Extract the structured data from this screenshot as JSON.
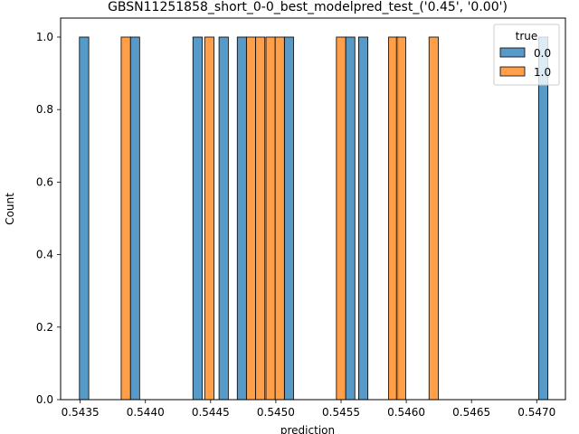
{
  "chart_data": {
    "type": "bar",
    "title": "GBSN11251858_short_0-0_best_modelpred_test_('0.45', '0.00')",
    "xlabel": "prediction",
    "ylabel": "Count",
    "xlim": [
      0.54335,
      0.54722
    ],
    "ylim": [
      0,
      1.0
    ],
    "xticks": [
      "0.5435",
      "0.5440",
      "0.5445",
      "0.5450",
      "0.5455",
      "0.5460",
      "0.5465",
      "0.5470"
    ],
    "xtick_values": [
      0.5435,
      0.544,
      0.5445,
      0.545,
      0.5455,
      0.546,
      0.5465,
      0.547
    ],
    "yticks": [
      "0.0",
      "0.2",
      "0.4",
      "0.6",
      "0.8",
      "1.0"
    ],
    "ytick_values": [
      0.0,
      0.2,
      0.4,
      0.6,
      0.8,
      1.0
    ],
    "legend_title": "true",
    "legend_position": "top-right",
    "series": [
      {
        "name": "0.0",
        "color": "#1f77b4",
        "bars": [
          {
            "x": 0.54353,
            "count": 1
          },
          {
            "x": 0.54392,
            "count": 1
          },
          {
            "x": 0.5444,
            "count": 1
          },
          {
            "x": 0.5446,
            "count": 1
          },
          {
            "x": 0.54474,
            "count": 1
          },
          {
            "x": 0.5451,
            "count": 1
          },
          {
            "x": 0.54557,
            "count": 1
          },
          {
            "x": 0.54567,
            "count": 1
          },
          {
            "x": 0.54705,
            "count": 1
          }
        ]
      },
      {
        "name": "1.0",
        "color": "#ff7f0e",
        "bars": [
          {
            "x": 0.54385,
            "count": 1
          },
          {
            "x": 0.54449,
            "count": 1
          },
          {
            "x": 0.54481,
            "count": 1
          },
          {
            "x": 0.54488,
            "count": 1
          },
          {
            "x": 0.54496,
            "count": 1
          },
          {
            "x": 0.54503,
            "count": 1
          },
          {
            "x": 0.5455,
            "count": 1
          },
          {
            "x": 0.5459,
            "count": 1
          },
          {
            "x": 0.54596,
            "count": 1
          },
          {
            "x": 0.54621,
            "count": 1
          }
        ]
      }
    ]
  }
}
